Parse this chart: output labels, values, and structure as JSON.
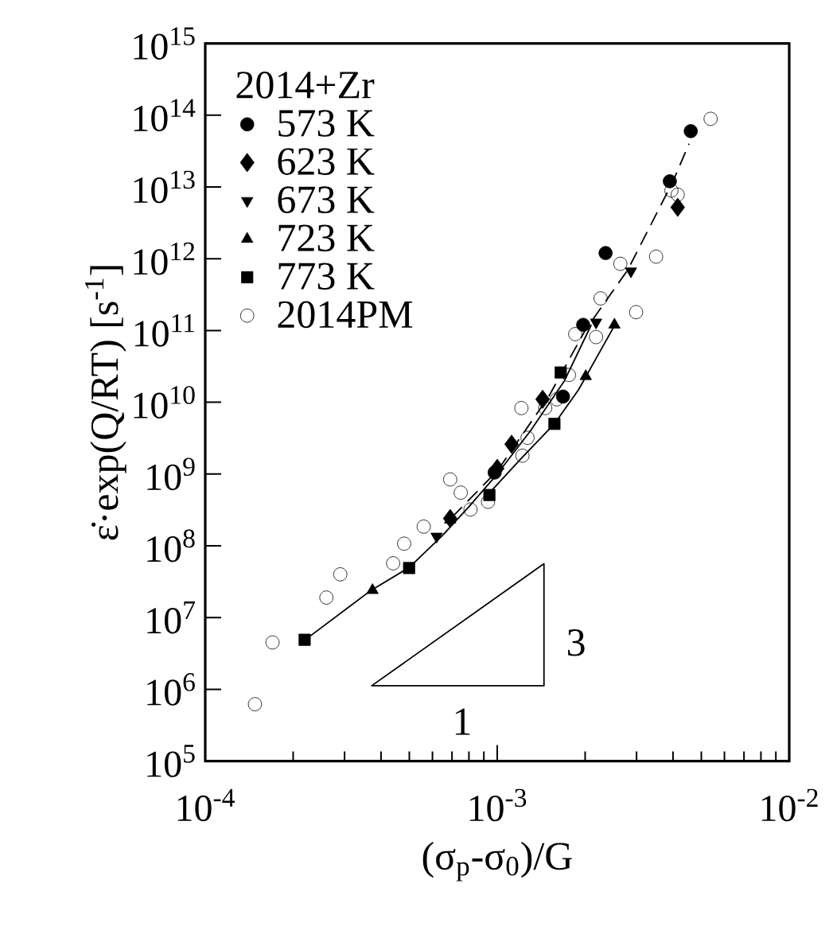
{
  "chart_data": {
    "type": "scatter",
    "xlabel": "(σ$_{p}$-σ$_{0}$)/G",
    "ylabel": "ε̇·exp(Q/RT) [s$^{-1}$]",
    "legend_title": "2014+Zr",
    "legend": "top left",
    "log": "xy",
    "xlim": [
      0.0001,
      0.01
    ],
    "ylim": [
      100000.0,
      1000000000000000.0
    ],
    "xticks": [
      {
        "value": 0.0001,
        "label": "10$^{-4}$"
      },
      {
        "value": 0.001,
        "label": "10$^{-3}$"
      },
      {
        "value": 0.01,
        "label": "10$^{-2}$"
      }
    ],
    "yticks": [
      {
        "value": 100000.0,
        "label": "10$^{5}$"
      },
      {
        "value": 1000000.0,
        "label": "10$^{6}$"
      },
      {
        "value": 10000000.0,
        "label": "10$^{7}$"
      },
      {
        "value": 100000000.0,
        "label": "10$^{8}$"
      },
      {
        "value": 1000000000.0,
        "label": "10$^{9}$"
      },
      {
        "value": 10000000000.0,
        "label": "10$^{10}$"
      },
      {
        "value": 100000000000.0,
        "label": "10$^{11}$"
      },
      {
        "value": 1000000000000.0,
        "label": "10$^{12}$"
      },
      {
        "value": 10000000000000.0,
        "label": "10$^{13}$"
      },
      {
        "value": 100000000000000.0,
        "label": "10$^{14}$"
      },
      {
        "value": 1000000000000000.0,
        "label": "10$^{15}$"
      }
    ],
    "series": [
      {
        "name": "573 K",
        "color": "#000000",
        "marker": "circle",
        "x": [
          0.0046,
          0.0039,
          0.00235,
          0.00197,
          0.00168,
          0.00098
        ],
        "values": [
          60000000000000.0,
          12000000000000.0,
          1200000000000.0,
          120000000000.0,
          12000000000.0,
          1050000000.0
        ]
      },
      {
        "name": "623 K",
        "color": "#000000",
        "marker": "diamond",
        "x": [
          0.00415,
          0.00143,
          0.00112,
          0.001,
          0.00069
        ],
        "values": [
          5200000000000.0,
          11000000000.0,
          2600000000.0,
          1200000000.0,
          240000000.0
        ]
      },
      {
        "name": "673 K",
        "color": "#000000",
        "marker": "triangle_down",
        "x": [
          0.00287,
          0.00218,
          0.00112,
          0.00062
        ],
        "values": [
          670000000000.0,
          130000000000.0,
          null,
          135000000.0
        ]
      },
      {
        "name": "723 K",
        "color": "#000000",
        "marker": "triangle",
        "x": [
          0.00252,
          0.00201,
          0.00069,
          0.000374
        ],
        "values": [
          120000000000.0,
          23000000000.0,
          230000000.0,
          24000000.0
        ]
      },
      {
        "name": "773 K",
        "color": "#000000",
        "marker": "square",
        "x": [
          0.00165,
          0.00157,
          0.00094,
          0.000499,
          0.000219
        ],
        "values": [
          26000000000.0,
          5000000000.0,
          510000000.0,
          49000000.0,
          4900000.0
        ]
      },
      {
        "name": "2014PM",
        "color": "#000000",
        "marker": "circle_open",
        "x": [
          0.00538,
          0.00395,
          0.00415,
          0.0035,
          0.00264,
          0.00299,
          0.00226,
          0.00218,
          0.00185,
          0.00176,
          0.0016,
          0.00146,
          0.00121,
          0.00127,
          0.00122,
          0.00093,
          0.00081,
          0.00075,
          0.00069,
          0.00056,
          0.00048,
          0.00044,
          0.00029,
          0.00026,
          0.00017,
          0.000148
        ],
        "values": [
          89000000000000.0,
          8900000000000.0,
          7800000000000.0,
          1070000000000.0,
          850000000000.0,
          180000000000.0,
          280000000000.0,
          81000000000.0,
          89000000000.0,
          24000000000.0,
          11000000000.0,
          8300000000.0,
          8300000000.0,
          3200000000.0,
          1800000000.0,
          410000000.0,
          320000000.0,
          550000000.0,
          840000000.0,
          185000000.0,
          107000000.0,
          57000000.0,
          40000000.0,
          19000000.0,
          4500000.0,
          620000.0
        ]
      },
      {
        "type": "line",
        "color": "#000000",
        "marker": "none",
        "line_style": "solid",
        "x": [
          0.00022,
          0.00037,
          0.0005,
          0.00065,
          0.0008,
          0.001,
          0.0013,
          0.0017,
          0.0021
        ],
        "values": [
          4900000.0,
          24000000.0,
          50000000.0,
          140000000.0,
          350000000.0,
          1000000000.0,
          4000000000.0,
          20000000000.0,
          120000000000.0
        ]
      },
      {
        "type": "line",
        "color": "#000000",
        "marker": "none",
        "line_style": "solid",
        "x": [
          0.0009,
          0.0012,
          0.00157,
          0.0019,
          0.0023,
          0.0025
        ],
        "values": [
          450000000.0,
          1600000000.0,
          5000000000.0,
          15000000000.0,
          60000000000.0,
          110000000000.0
        ]
      },
      {
        "type": "line",
        "color": "#000000",
        "marker": "none",
        "line_style": "dashed",
        "x": [
          0.0007,
          0.001,
          0.0015,
          0.002,
          0.0028,
          0.004,
          0.00454
        ],
        "values": [
          250000000.0,
          1100000000.0,
          12000000000.0,
          100000000000.0,
          700000000000.0,
          12000000000000.0,
          40000000000000.0
        ]
      }
    ],
    "annotations": [
      "3",
      "1"
    ]
  }
}
